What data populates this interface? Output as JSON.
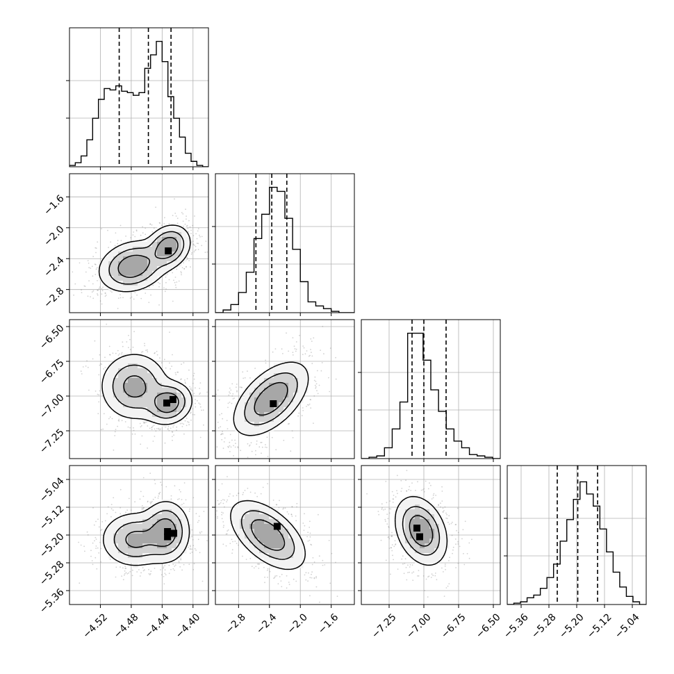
{
  "chart_data": {
    "type": "corner",
    "n_params": 4,
    "grid": true,
    "parameters": [
      {
        "range": [
          -4.56,
          -4.38
        ],
        "ticks": [
          -4.52,
          -4.48,
          -4.44,
          -4.4
        ],
        "tick_labels": [
          "−4.52",
          "−4.48",
          "−4.44",
          "−4.40"
        ],
        "quantiles": [
          -4.4956,
          -4.4578,
          -4.4285
        ],
        "hist": [
          0.01,
          0.03,
          0.08,
          0.2,
          0.36,
          0.5,
          0.58,
          0.57,
          0.6,
          0.56,
          0.55,
          0.53,
          0.55,
          0.73,
          0.83,
          0.93,
          0.78,
          0.52,
          0.36,
          0.22,
          0.1,
          0.04,
          0.01,
          0.0
        ]
      },
      {
        "range": [
          -3.1,
          -1.3
        ],
        "ticks": [
          -2.8,
          -2.4,
          -2.0,
          -1.6
        ],
        "tick_labels": [
          "−2.8",
          "−2.4",
          "−2.0",
          "−1.6"
        ],
        "quantiles": [
          -2.575,
          -2.37,
          -2.175
        ],
        "hist": [
          0.0,
          0.02,
          0.06,
          0.15,
          0.3,
          0.55,
          0.73,
          0.93,
          0.9,
          0.7,
          0.47,
          0.23,
          0.08,
          0.05,
          0.03,
          0.01,
          0.0,
          0.0
        ]
      },
      {
        "range": [
          -7.45,
          -6.45
        ],
        "ticks": [
          -7.25,
          -7.0,
          -6.75,
          -6.5
        ],
        "tick_labels": [
          "−7.25",
          "−7.00",
          "−6.75",
          "−6.50"
        ],
        "quantiles": [
          -7.085,
          -7.0,
          -6.84
        ],
        "hist": [
          0.0,
          0.01,
          0.02,
          0.08,
          0.22,
          0.42,
          0.93,
          0.93,
          0.73,
          0.51,
          0.35,
          0.22,
          0.13,
          0.08,
          0.03,
          0.02,
          0.01,
          0.0
        ]
      },
      {
        "range": [
          -5.4,
          -5.0
        ],
        "ticks": [
          -5.36,
          -5.28,
          -5.2,
          -5.12,
          -5.04
        ],
        "tick_labels": [
          "−5.36",
          "−5.28",
          "−5.20",
          "−5.12",
          "−5.04"
        ],
        "quantiles": [
          -5.256,
          -5.197,
          -5.14
        ],
        "hist": [
          0.0,
          0.01,
          0.02,
          0.05,
          0.07,
          0.12,
          0.2,
          0.3,
          0.47,
          0.63,
          0.78,
          0.91,
          0.82,
          0.73,
          0.56,
          0.39,
          0.24,
          0.13,
          0.06,
          0.02,
          0.0
        ]
      }
    ],
    "pairs": [
      {
        "x": 0,
        "y": 1,
        "modes": [
          {
            "x": -4.478,
            "y": -2.5,
            "sx": 0.02,
            "sy": 0.15,
            "rho": 0.2,
            "w": 0.5
          },
          {
            "x": -4.432,
            "y": -2.25,
            "sx": 0.013,
            "sy": 0.13,
            "rho": 0.2,
            "w": 0.5
          }
        ],
        "peaks": [
          [
            -4.432,
            -2.3
          ]
        ]
      },
      {
        "x": 0,
        "y": 2,
        "modes": [
          {
            "x": -4.476,
            "y": -6.93,
            "sx": 0.02,
            "sy": 0.11,
            "rho": 0.0,
            "w": 0.45
          },
          {
            "x": -4.432,
            "y": -7.05,
            "sx": 0.014,
            "sy": 0.07,
            "rho": 0.1,
            "w": 0.55
          }
        ],
        "peaks": [
          [
            -4.434,
            -7.05
          ],
          [
            -4.426,
            -7.025
          ]
        ]
      },
      {
        "x": 1,
        "y": 2,
        "modes": [
          {
            "x": -2.38,
            "y": -7.02,
            "sx": 0.22,
            "sy": 0.12,
            "rho": 0.55,
            "w": 1.0
          }
        ],
        "peaks": [
          [
            -2.35,
            -7.055
          ]
        ]
      },
      {
        "x": 0,
        "y": 3,
        "modes": [
          {
            "x": -4.475,
            "y": -5.213,
            "sx": 0.02,
            "sy": 0.036,
            "rho": 0.0,
            "w": 0.45
          },
          {
            "x": -4.435,
            "y": -5.19,
            "sx": 0.014,
            "sy": 0.04,
            "rho": 0.0,
            "w": 0.55
          }
        ],
        "peaks": [
          [
            -4.433,
            -5.19
          ],
          [
            -4.433,
            -5.205
          ],
          [
            -4.425,
            -5.195
          ]
        ]
      },
      {
        "x": 1,
        "y": 3,
        "modes": [
          {
            "x": -2.42,
            "y": -5.2,
            "sx": 0.22,
            "sy": 0.045,
            "rho": -0.55,
            "w": 1.0
          }
        ],
        "peaks": [
          [
            -2.3,
            -5.175
          ]
        ]
      },
      {
        "x": 2,
        "y": 3,
        "modes": [
          {
            "x": -7.02,
            "y": -5.188,
            "sx": 0.085,
            "sy": 0.045,
            "rho": -0.3,
            "w": 1.0
          }
        ],
        "peaks": [
          [
            -7.05,
            -5.18
          ],
          [
            -7.03,
            -5.205
          ]
        ]
      }
    ]
  }
}
